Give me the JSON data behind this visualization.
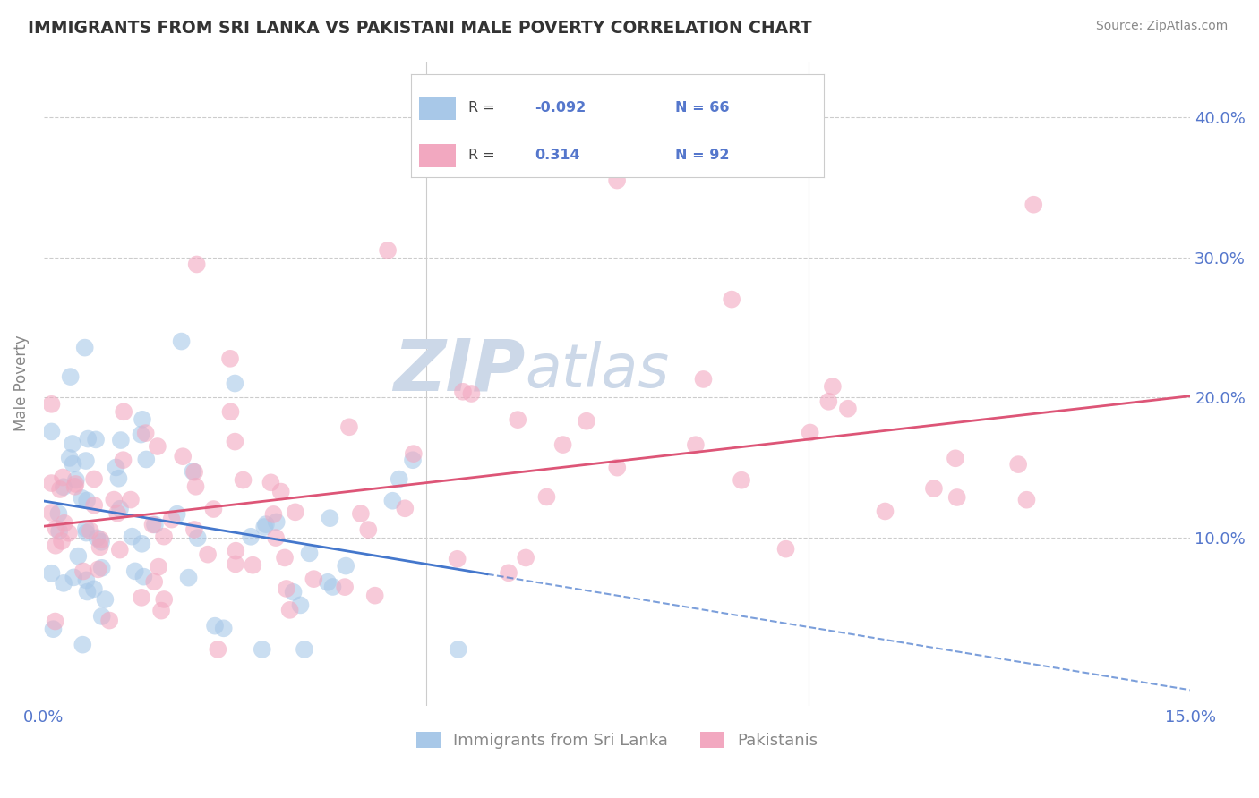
{
  "title": "IMMIGRANTS FROM SRI LANKA VS PAKISTANI MALE POVERTY CORRELATION CHART",
  "source": "Source: ZipAtlas.com",
  "ylabel": "Male Poverty",
  "xlim": [
    0.0,
    0.15
  ],
  "ylim": [
    -0.02,
    0.44
  ],
  "ytick_labels": [
    "10.0%",
    "20.0%",
    "30.0%",
    "40.0%"
  ],
  "yticks": [
    0.1,
    0.2,
    0.3,
    0.4
  ],
  "legend_labels": [
    "Immigrants from Sri Lanka",
    "Pakistanis"
  ],
  "sri_lanka_color": "#a8c8e8",
  "pakistani_color": "#f2a8c0",
  "sri_lanka_line_color": "#4477cc",
  "pakistani_line_color": "#dd5577",
  "watermark_color": "#ccd8e8",
  "R_sri": -0.092,
  "N_sri": 66,
  "R_pak": 0.314,
  "N_pak": 92,
  "background_color": "#ffffff",
  "grid_color": "#cccccc",
  "title_color": "#333333",
  "axis_label_color": "#888888",
  "tick_label_color": "#5577cc",
  "legend_text_color": "#5577cc",
  "legend_label_dark": "#444444"
}
